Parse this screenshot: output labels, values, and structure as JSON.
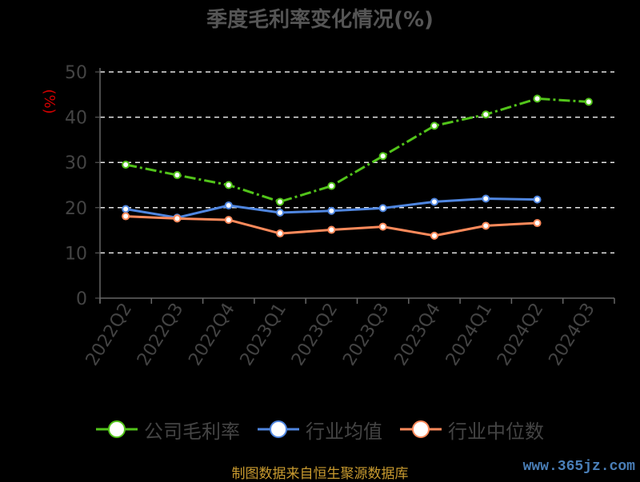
{
  "chart_data": {
    "type": "line",
    "title": "季度毛利率变化情况(%)",
    "ylabel": "(%)",
    "xlabel": "",
    "ylim": [
      0,
      50
    ],
    "yticks": [
      0,
      10,
      20,
      30,
      40,
      50
    ],
    "categories": [
      "2022Q2",
      "2022Q3",
      "2022Q4",
      "2023Q1",
      "2023Q2",
      "2023Q3",
      "2023Q4",
      "2024Q1",
      "2024Q2",
      "2024Q3"
    ],
    "grid": true,
    "legend_position": "bottom",
    "series": [
      {
        "name": "公司毛利率",
        "color": "#52c41a",
        "values": [
          29.5,
          27.2,
          25.0,
          21.3,
          24.8,
          31.4,
          38.1,
          40.6,
          44.1,
          43.4
        ]
      },
      {
        "name": "行业均值",
        "color": "#4f86e0",
        "values": [
          19.7,
          17.8,
          20.5,
          18.9,
          19.3,
          19.9,
          21.3,
          22.0,
          21.8,
          null
        ]
      },
      {
        "name": "行业中位数",
        "color": "#ff8a5b",
        "values": [
          18.1,
          17.6,
          17.3,
          14.3,
          15.1,
          15.8,
          13.8,
          16.0,
          16.6,
          null
        ]
      }
    ]
  },
  "footer": {
    "source": "制图数据来自恒生聚源数据库",
    "watermark": "www.365jz.com"
  }
}
